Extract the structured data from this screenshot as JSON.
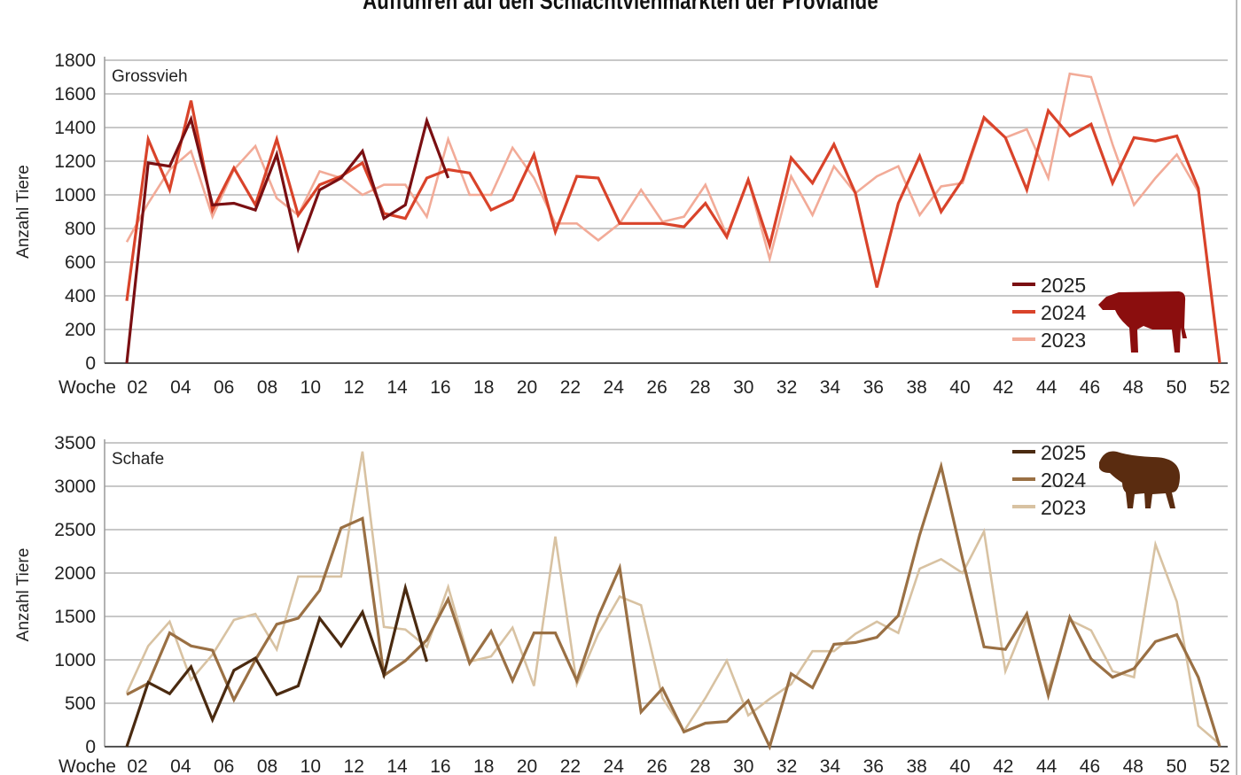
{
  "title": "Auffuhren auf den Schlachtviehmärkten der Proviande",
  "colors": {
    "grossvieh": {
      "2025": "#7a0f12",
      "2024": "#d9432a",
      "2023": "#f2ab98"
    },
    "schafe": {
      "2025": "#4a2a10",
      "2024": "#9a7044",
      "2023": "#d8c2a2"
    },
    "cow_icon": "#8b0e0e",
    "sheep_icon": "#5a2c10",
    "grid": "#c8c8c8"
  },
  "chart_data": [
    {
      "type": "line",
      "panel_label": "Grossvieh",
      "ylabel": "Anzahl Tiere",
      "xlabel": "Woche",
      "ylim": [
        0,
        1800
      ],
      "yticks": [
        0,
        200,
        400,
        600,
        800,
        1000,
        1200,
        1400,
        1600,
        1800
      ],
      "xticks": [
        "02",
        "04",
        "06",
        "08",
        "10",
        "12",
        "14",
        "16",
        "18",
        "20",
        "22",
        "24",
        "26",
        "28",
        "30",
        "32",
        "34",
        "36",
        "38",
        "40",
        "42",
        "44",
        "46",
        "48",
        "50",
        "52"
      ],
      "x": "week 1-52",
      "grid": true,
      "legend": "bottom-right",
      "icon": "cow-icon",
      "series": [
        {
          "name": "2025",
          "values": [
            0,
            1190,
            1170,
            1450,
            940,
            950,
            910,
            1240,
            680,
            1030,
            1100,
            1260,
            860,
            940,
            1440,
            1100
          ]
        },
        {
          "name": "2024",
          "values": [
            370,
            1330,
            1030,
            1560,
            910,
            1160,
            940,
            1330,
            880,
            1060,
            1110,
            1190,
            890,
            860,
            1100,
            1150,
            1130,
            910,
            970,
            1240,
            780,
            1110,
            1100,
            830,
            830,
            830,
            810,
            950,
            750,
            1090,
            700,
            1220,
            1070,
            1300,
            1010,
            450,
            950,
            1230,
            900,
            1090,
            1460,
            1340,
            1030,
            1500,
            1350,
            1420,
            1070,
            1340,
            1320,
            1350,
            1040,
            0
          ]
        },
        {
          "name": "2023",
          "values": [
            720,
            950,
            1150,
            1260,
            870,
            1150,
            1290,
            980,
            880,
            1140,
            1100,
            1000,
            1060,
            1060,
            870,
            1330,
            1000,
            1000,
            1280,
            1100,
            830,
            830,
            730,
            830,
            1030,
            840,
            870,
            1060,
            760,
            1090,
            620,
            1110,
            880,
            1170,
            1010,
            1110,
            1170,
            880,
            1050,
            1070,
            1450,
            1340,
            1390,
            1100,
            1720,
            1700,
            1300,
            940,
            1100,
            1240,
            1020
          ]
        }
      ]
    },
    {
      "type": "line",
      "panel_label": "Schafe",
      "ylabel": "Anzahl Tiere",
      "xlabel": "Woche",
      "ylim": [
        0,
        3500
      ],
      "yticks": [
        0,
        500,
        1000,
        1500,
        2000,
        2500,
        3000,
        3500
      ],
      "xticks": [
        "02",
        "04",
        "06",
        "08",
        "10",
        "12",
        "14",
        "16",
        "18",
        "20",
        "22",
        "24",
        "26",
        "28",
        "30",
        "32",
        "34",
        "36",
        "38",
        "40",
        "42",
        "44",
        "46",
        "48",
        "50",
        "52"
      ],
      "x": "week 1-52",
      "grid": true,
      "legend": "top-right",
      "icon": "sheep-icon",
      "series": [
        {
          "name": "2025",
          "values": [
            0,
            740,
            610,
            920,
            310,
            880,
            1020,
            600,
            700,
            1480,
            1160,
            1550,
            830,
            1830,
            980
          ]
        },
        {
          "name": "2024",
          "values": [
            600,
            730,
            1310,
            1160,
            1110,
            540,
            1000,
            1410,
            1480,
            1800,
            2520,
            2630,
            820,
            990,
            1230,
            1700,
            960,
            1330,
            760,
            1310,
            1310,
            760,
            1500,
            2060,
            400,
            670,
            170,
            270,
            290,
            530,
            0,
            840,
            680,
            1180,
            1200,
            1260,
            1510,
            2440,
            3230,
            2160,
            1150,
            1120,
            1530,
            590,
            1490,
            1010,
            800,
            900,
            1210,
            1290,
            800,
            0
          ]
        },
        {
          "name": "2023",
          "values": [
            620,
            1160,
            1440,
            770,
            1060,
            1460,
            1530,
            1120,
            1960,
            1960,
            1960,
            3400,
            1380,
            1350,
            1150,
            1840,
            980,
            1040,
            1370,
            700,
            2420,
            720,
            1300,
            1730,
            1630,
            560,
            180,
            560,
            990,
            360,
            550,
            720,
            1100,
            1100,
            1300,
            1440,
            1310,
            2050,
            2160,
            2000,
            2480,
            870,
            1480,
            660,
            1460,
            1340,
            870,
            800,
            2330,
            1670,
            240,
            30
          ]
        }
      ]
    }
  ]
}
